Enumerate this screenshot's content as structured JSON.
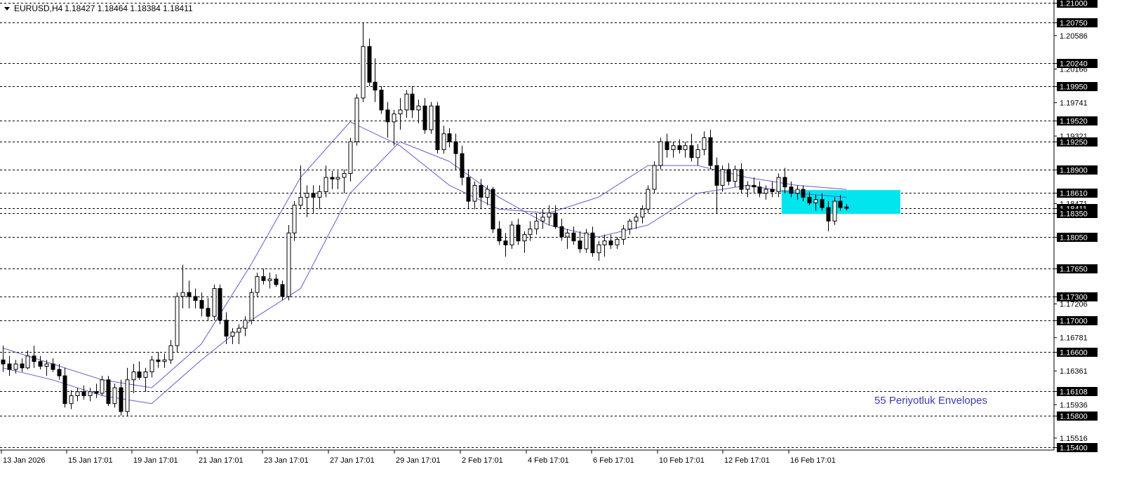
{
  "header": {
    "symbol_label": "EURUSD,H4",
    "ohlc": "1.18427 1.18464 1.18384 1.18411"
  },
  "annotation": "55 Periyotluk Envelopes",
  "colors": {
    "background": "#ffffff",
    "grid": "#000000",
    "bull_body": "#ffffff",
    "bear_body": "#000000",
    "envelope": "#6a5acd",
    "zone": "#00e5ee",
    "annotation": "#3b3bb0",
    "label_box": "#000000"
  },
  "chart_data": {
    "type": "candlestick",
    "symbol": "EURUSD",
    "timeframe": "H4",
    "ylim": [
      1.154,
      1.21
    ],
    "grid": "dashed horizontal lines at marked levels",
    "x_tick_labels": [
      "13 Jan 2026",
      "15 Jan 17:01",
      "19 Jan 17:01",
      "21 Jan 17:01",
      "23 Jan 17:01",
      "27 Jan 17:01",
      "29 Jan 17:01",
      "2 Feb 17:01",
      "4 Feb 17:01",
      "6 Feb 17:01",
      "10 Feb 17:01",
      "12 Feb 17:01",
      "16 Feb 17:01"
    ],
    "y_tick_labels": [
      "1.20586",
      "1.20166",
      "1.19741",
      "1.19321",
      "1.18471",
      "1.17206",
      "1.16781",
      "1.16361",
      "1.15936",
      "1.15516"
    ],
    "horizontal_levels": [
      "1.21000",
      "1.20750",
      "1.20240",
      "1.19950",
      "1.19520",
      "1.19250",
      "1.18900",
      "1.18610",
      "1.18411",
      "1.18350",
      "1.18050",
      "1.17650",
      "1.17300",
      "1.17000",
      "1.16600",
      "1.16108",
      "1.15800",
      "1.15400"
    ],
    "highlight_zone": {
      "y_top": 1.1864,
      "y_bottom": 1.1834,
      "from_candle": 126
    },
    "candles_ohlc": [
      [
        1.165,
        1.1668,
        1.1635,
        1.1645
      ],
      [
        1.1645,
        1.1655,
        1.163,
        1.1638
      ],
      [
        1.1638,
        1.165,
        1.1633,
        1.1645
      ],
      [
        1.1645,
        1.1652,
        1.1635,
        1.164
      ],
      [
        1.164,
        1.1662,
        1.1638,
        1.1655
      ],
      [
        1.1655,
        1.1668,
        1.164,
        1.1648
      ],
      [
        1.1648,
        1.1655,
        1.1638,
        1.1642
      ],
      [
        1.1642,
        1.165,
        1.163,
        1.1645
      ],
      [
        1.1645,
        1.1652,
        1.1635,
        1.1638
      ],
      [
        1.1638,
        1.1645,
        1.1625,
        1.163
      ],
      [
        1.163,
        1.164,
        1.159,
        1.1595
      ],
      [
        1.1595,
        1.1612,
        1.1588,
        1.1605
      ],
      [
        1.1605,
        1.1615,
        1.1598,
        1.161
      ],
      [
        1.161,
        1.1618,
        1.16,
        1.1605
      ],
      [
        1.1605,
        1.1615,
        1.1598,
        1.161
      ],
      [
        1.161,
        1.162,
        1.1602,
        1.1608
      ],
      [
        1.1608,
        1.163,
        1.1605,
        1.1625
      ],
      [
        1.1625,
        1.163,
        1.1592,
        1.1595
      ],
      [
        1.1595,
        1.162,
        1.159,
        1.1615
      ],
      [
        1.1615,
        1.1625,
        1.158,
        1.1585
      ],
      [
        1.1585,
        1.164,
        1.158,
        1.1625
      ],
      [
        1.1625,
        1.1645,
        1.1608,
        1.1635
      ],
      [
        1.1635,
        1.1648,
        1.1625,
        1.1628
      ],
      [
        1.1628,
        1.164,
        1.161,
        1.1635
      ],
      [
        1.1635,
        1.1655,
        1.1628,
        1.165
      ],
      [
        1.165,
        1.166,
        1.164,
        1.1648
      ],
      [
        1.1648,
        1.1658,
        1.164,
        1.165
      ],
      [
        1.165,
        1.1675,
        1.1645,
        1.1668
      ],
      [
        1.1668,
        1.1735,
        1.166,
        1.173
      ],
      [
        1.173,
        1.177,
        1.1715,
        1.1735
      ],
      [
        1.1735,
        1.175,
        1.1715,
        1.173
      ],
      [
        1.173,
        1.174,
        1.1715,
        1.1725
      ],
      [
        1.1725,
        1.1735,
        1.1705,
        1.1715
      ],
      [
        1.1715,
        1.1728,
        1.17,
        1.1705
      ],
      [
        1.1705,
        1.1745,
        1.17,
        1.174
      ],
      [
        1.174,
        1.1745,
        1.1695,
        1.17
      ],
      [
        1.17,
        1.171,
        1.167,
        1.168
      ],
      [
        1.168,
        1.169,
        1.167,
        1.1685
      ],
      [
        1.1685,
        1.1695,
        1.167,
        1.169
      ],
      [
        1.169,
        1.1705,
        1.168,
        1.17
      ],
      [
        1.17,
        1.174,
        1.1695,
        1.1735
      ],
      [
        1.1735,
        1.176,
        1.173,
        1.1755
      ],
      [
        1.1755,
        1.1765,
        1.1745,
        1.175
      ],
      [
        1.175,
        1.176,
        1.174,
        1.1752
      ],
      [
        1.1752,
        1.1758,
        1.1742,
        1.1745
      ],
      [
        1.1745,
        1.175,
        1.1725,
        1.173
      ],
      [
        1.173,
        1.182,
        1.1725,
        1.181
      ],
      [
        1.181,
        1.185,
        1.18,
        1.1845
      ],
      [
        1.1845,
        1.1895,
        1.184,
        1.1855
      ],
      [
        1.1855,
        1.187,
        1.183,
        1.186
      ],
      [
        1.186,
        1.187,
        1.1835,
        1.1855
      ],
      [
        1.1855,
        1.187,
        1.184,
        1.1862
      ],
      [
        1.1862,
        1.1895,
        1.1855,
        1.188
      ],
      [
        1.188,
        1.1888,
        1.1865,
        1.1878
      ],
      [
        1.1878,
        1.1888,
        1.1865,
        1.188
      ],
      [
        1.188,
        1.189,
        1.186,
        1.1885
      ],
      [
        1.1885,
        1.193,
        1.1875,
        1.1925
      ],
      [
        1.1925,
        1.1985,
        1.192,
        1.198
      ],
      [
        1.198,
        1.2075,
        1.1975,
        1.2045
      ],
      [
        1.2045,
        1.2055,
        1.1995,
        1.2
      ],
      [
        1.2,
        1.203,
        1.1975,
        1.199
      ],
      [
        1.199,
        1.1995,
        1.196,
        1.1965
      ],
      [
        1.1965,
        1.1975,
        1.193,
        1.195
      ],
      [
        1.195,
        1.1965,
        1.192,
        1.196
      ],
      [
        1.196,
        1.198,
        1.194,
        1.1965
      ],
      [
        1.1965,
        1.199,
        1.1955,
        1.1985
      ],
      [
        1.1985,
        1.1995,
        1.1955,
        1.1965
      ],
      [
        1.1965,
        1.1978,
        1.1948,
        1.197
      ],
      [
        1.197,
        1.198,
        1.1935,
        1.194
      ],
      [
        1.194,
        1.1975,
        1.1935,
        1.197
      ],
      [
        1.197,
        1.1975,
        1.191,
        1.1915
      ],
      [
        1.1915,
        1.1945,
        1.191,
        1.1935
      ],
      [
        1.1935,
        1.1942,
        1.1918,
        1.1925
      ],
      [
        1.1925,
        1.1935,
        1.189,
        1.191
      ],
      [
        1.191,
        1.192,
        1.187,
        1.188
      ],
      [
        1.188,
        1.189,
        1.184,
        1.185
      ],
      [
        1.185,
        1.1875,
        1.184,
        1.187
      ],
      [
        1.187,
        1.1878,
        1.184,
        1.1855
      ],
      [
        1.1855,
        1.187,
        1.1845,
        1.1865
      ],
      [
        1.1865,
        1.1868,
        1.181,
        1.1815
      ],
      [
        1.1815,
        1.1825,
        1.1795,
        1.18
      ],
      [
        1.18,
        1.181,
        1.178,
        1.1795
      ],
      [
        1.1795,
        1.1825,
        1.179,
        1.182
      ],
      [
        1.182,
        1.1828,
        1.1795,
        1.18
      ],
      [
        1.18,
        1.1812,
        1.1785,
        1.1808
      ],
      [
        1.1808,
        1.1825,
        1.18,
        1.1815
      ],
      [
        1.1815,
        1.1835,
        1.1808,
        1.1825
      ],
      [
        1.1825,
        1.184,
        1.1815,
        1.183
      ],
      [
        1.183,
        1.1845,
        1.182,
        1.1835
      ],
      [
        1.1835,
        1.1845,
        1.1815,
        1.1818
      ],
      [
        1.1818,
        1.1828,
        1.18,
        1.1805
      ],
      [
        1.1805,
        1.1815,
        1.179,
        1.181
      ],
      [
        1.181,
        1.1818,
        1.1795,
        1.18
      ],
      [
        1.18,
        1.1812,
        1.1785,
        1.179
      ],
      [
        1.179,
        1.1815,
        1.1785,
        1.181
      ],
      [
        1.181,
        1.1818,
        1.178,
        1.1785
      ],
      [
        1.1785,
        1.18,
        1.1775,
        1.1795
      ],
      [
        1.1795,
        1.1808,
        1.178,
        1.18
      ],
      [
        1.18,
        1.1808,
        1.179,
        1.1795
      ],
      [
        1.1795,
        1.1805,
        1.179,
        1.1802
      ],
      [
        1.1802,
        1.182,
        1.1795,
        1.1815
      ],
      [
        1.1815,
        1.1828,
        1.1808,
        1.1825
      ],
      [
        1.1825,
        1.1835,
        1.1815,
        1.183
      ],
      [
        1.183,
        1.1845,
        1.1822,
        1.184
      ],
      [
        1.184,
        1.187,
        1.1835,
        1.1865
      ],
      [
        1.1865,
        1.19,
        1.186,
        1.1895
      ],
      [
        1.1895,
        1.193,
        1.189,
        1.1925
      ],
      [
        1.1925,
        1.1935,
        1.1905,
        1.1915
      ],
      [
        1.1915,
        1.1925,
        1.1905,
        1.192
      ],
      [
        1.192,
        1.1928,
        1.191,
        1.1915
      ],
      [
        1.1915,
        1.1925,
        1.1905,
        1.192
      ],
      [
        1.192,
        1.1935,
        1.19,
        1.1905
      ],
      [
        1.1905,
        1.1922,
        1.1895,
        1.1915
      ],
      [
        1.1915,
        1.1938,
        1.1908,
        1.193
      ],
      [
        1.193,
        1.194,
        1.189,
        1.1895
      ],
      [
        1.1895,
        1.1905,
        1.1835,
        1.187
      ],
      [
        1.187,
        1.1895,
        1.1862,
        1.189
      ],
      [
        1.189,
        1.1898,
        1.187,
        1.1875
      ],
      [
        1.1875,
        1.1895,
        1.1868,
        1.189
      ],
      [
        1.189,
        1.1898,
        1.186,
        1.1865
      ],
      [
        1.1865,
        1.1875,
        1.1855,
        1.187
      ],
      [
        1.187,
        1.188,
        1.186,
        1.1868
      ],
      [
        1.1868,
        1.1875,
        1.1855,
        1.186
      ],
      [
        1.186,
        1.187,
        1.1852,
        1.1865
      ],
      [
        1.1865,
        1.1875,
        1.1855,
        1.1862
      ],
      [
        1.1862,
        1.1885,
        1.1855,
        1.188
      ],
      [
        1.188,
        1.1892,
        1.186,
        1.1868
      ],
      [
        1.1868,
        1.1875,
        1.1855,
        1.186
      ],
      [
        1.186,
        1.187,
        1.1852,
        1.1865
      ],
      [
        1.1865,
        1.187,
        1.185,
        1.1855
      ],
      [
        1.1855,
        1.1862,
        1.1845,
        1.1848
      ],
      [
        1.1848,
        1.1858,
        1.1838,
        1.1852
      ],
      [
        1.1852,
        1.186,
        1.1838,
        1.1842
      ],
      [
        1.1842,
        1.185,
        1.1812,
        1.1825
      ],
      [
        1.1825,
        1.1855,
        1.182,
        1.185
      ],
      [
        1.185,
        1.1858,
        1.1838,
        1.1842
      ],
      [
        1.18427,
        1.18464,
        1.18384,
        1.18411
      ]
    ],
    "envelope_upper": [
      1.1665,
      1.1645,
      1.1625,
      1.1615,
      1.167,
      1.177,
      1.188,
      1.195,
      1.192,
      1.187,
      1.184,
      1.1835,
      1.1855,
      1.1895,
      1.1895,
      1.188,
      1.187,
      1.1865
    ],
    "envelope_lower": [
      1.164,
      1.1625,
      1.1605,
      1.1595,
      1.165,
      1.17,
      1.174,
      1.186,
      1.1925,
      1.19,
      1.1855,
      1.182,
      1.1805,
      1.182,
      1.186,
      1.187,
      1.186,
      1.1855
    ]
  }
}
